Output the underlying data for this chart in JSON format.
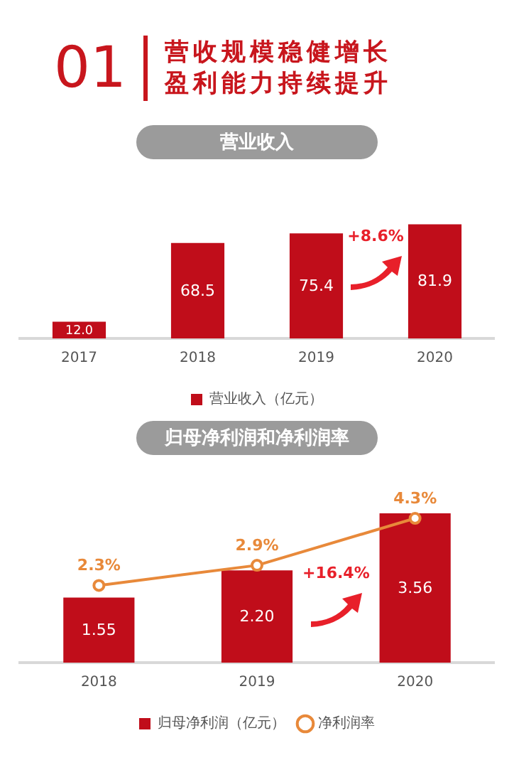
{
  "chart_data": [
    {
      "type": "other",
      "annotations": [
        "01",
        "营收规模稳健增长",
        "盈利能力持续提升"
      ]
    },
    {
      "type": "bar",
      "title": "营业收入",
      "annotations": [
        "+8.6%"
      ],
      "categories": [
        "2017",
        "2018",
        "2019",
        "2020"
      ],
      "series": [
        {
          "name": "营业收入（亿元）",
          "color": "#c00d1a",
          "values": [
            12.0,
            68.5,
            75.4,
            81.9
          ],
          "value_labels": [
            "12.0",
            "68.5",
            "75.4",
            "81.9"
          ]
        }
      ],
      "tick_labels": "x",
      "legend": "bottom",
      "grid": false
    },
    {
      "type": "bar",
      "title": "归母净利润和净利润率",
      "annotations": [
        "+16.4%"
      ],
      "categories": [
        "2018",
        "2019",
        "2020"
      ],
      "series": [
        {
          "name": "归母净利润（亿元）",
          "color": "#c00d1a",
          "values": [
            1.55,
            2.2,
            3.56
          ],
          "value_labels": [
            "1.55",
            "2.20",
            "3.56"
          ]
        },
        {
          "name": "净利润率",
          "type": "line",
          "axis": "y2",
          "color": "#e8893a",
          "values": [
            2.3,
            2.9,
            4.3
          ],
          "value_labels": [
            "2.3%",
            "2.9%",
            "4.3%"
          ]
        }
      ],
      "tick_labels": "x",
      "legend": "bottom",
      "grid": false,
      "marker": "circle"
    }
  ]
}
